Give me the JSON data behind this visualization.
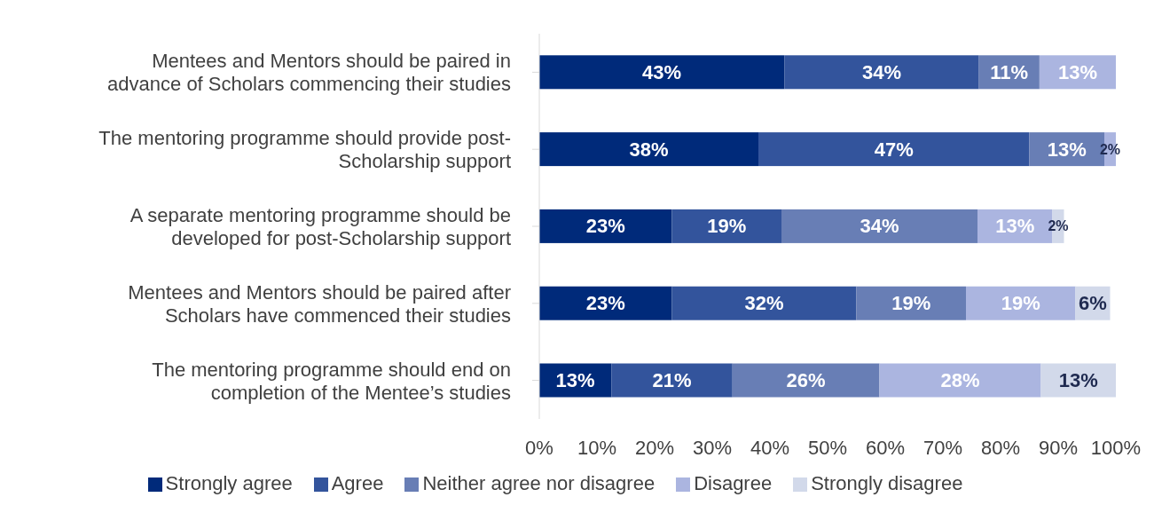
{
  "chart_data": {
    "type": "bar",
    "orientation": "horizontal",
    "stacked": true,
    "categories": [
      "Mentees and Mentors should be paired in advance of Scholars commencing their studies",
      "The mentoring programme should provide post-Scholarship support",
      "A separate mentoring programme should be developed for post-Scholarship support",
      "Mentees and Mentors should be paired after Scholars have commenced their studies",
      "The mentoring programme should end on completion of the Mentee’s studies"
    ],
    "series": [
      {
        "name": "Strongly agree",
        "color": "#002a7a",
        "values": [
          42.5,
          38,
          23,
          23,
          12.5
        ],
        "value_labels": [
          "43%",
          "38%",
          "23%",
          "23%",
          "13%"
        ]
      },
      {
        "name": "Agree",
        "color": "#33549c",
        "values": [
          33.75,
          47,
          19,
          32,
          21
        ],
        "value_labels": [
          "34%",
          "47%",
          "19%",
          "32%",
          "21%"
        ]
      },
      {
        "name": "Neither agree nor disagree",
        "color": "#687eb5",
        "values": [
          10.5,
          13,
          34,
          19,
          25.5
        ],
        "value_labels": [
          "11%",
          "13%",
          "34%",
          "19%",
          "26%"
        ]
      },
      {
        "name": "Disagree",
        "color": "#abb5e0",
        "values": [
          13.25,
          2,
          13,
          19,
          28
        ],
        "value_labels": [
          "13%",
          "2%",
          "13%",
          "19%",
          "28%"
        ]
      },
      {
        "name": "Strongly disagree",
        "color": "#d2d9ea",
        "values": [
          null,
          null,
          2,
          6,
          13
        ],
        "value_labels": [
          null,
          null,
          "2%",
          "6%",
          "13%"
        ]
      }
    ],
    "xlim": [
      0,
      100
    ],
    "xticks": [
      {
        "value": 0,
        "label": "0%"
      },
      {
        "value": 10,
        "label": "10%"
      },
      {
        "value": 20,
        "label": "20%"
      },
      {
        "value": 30,
        "label": "30%"
      },
      {
        "value": 40,
        "label": "40%"
      },
      {
        "value": 50,
        "label": "50%"
      },
      {
        "value": 60,
        "label": "60%"
      },
      {
        "value": 70,
        "label": "70%"
      },
      {
        "value": 80,
        "label": "80%"
      },
      {
        "value": 90,
        "label": "90%"
      },
      {
        "value": 100,
        "label": "100%"
      }
    ],
    "legend": "bottom",
    "grid": false
  }
}
